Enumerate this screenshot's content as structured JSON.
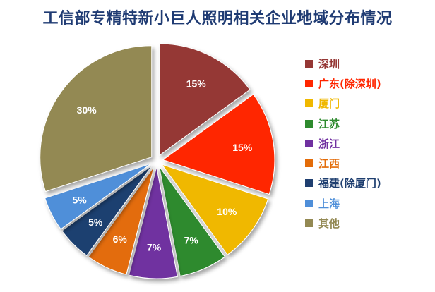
{
  "chart_data": {
    "type": "pie",
    "title": "工信部专精特新小巨人照明相关企业地域分布情况",
    "categories": [
      "深圳",
      "广东(除深圳)",
      "厦门",
      "江苏",
      "浙江",
      "江西",
      "福建(除厦门)",
      "上海",
      "其他"
    ],
    "values": [
      15,
      15,
      10,
      7,
      7,
      6,
      5,
      5,
      30
    ],
    "value_labels": [
      "15%",
      "15%",
      "10%",
      "7%",
      "7%",
      "6%",
      "5%",
      "5%",
      "30%"
    ],
    "colors": [
      "#953735",
      "#ff2600",
      "#f0b800",
      "#2e8a2e",
      "#7030a0",
      "#e36c09",
      "#1f3f70",
      "#4f8fd9",
      "#938953"
    ],
    "legend_position": "right",
    "exploded": true
  }
}
